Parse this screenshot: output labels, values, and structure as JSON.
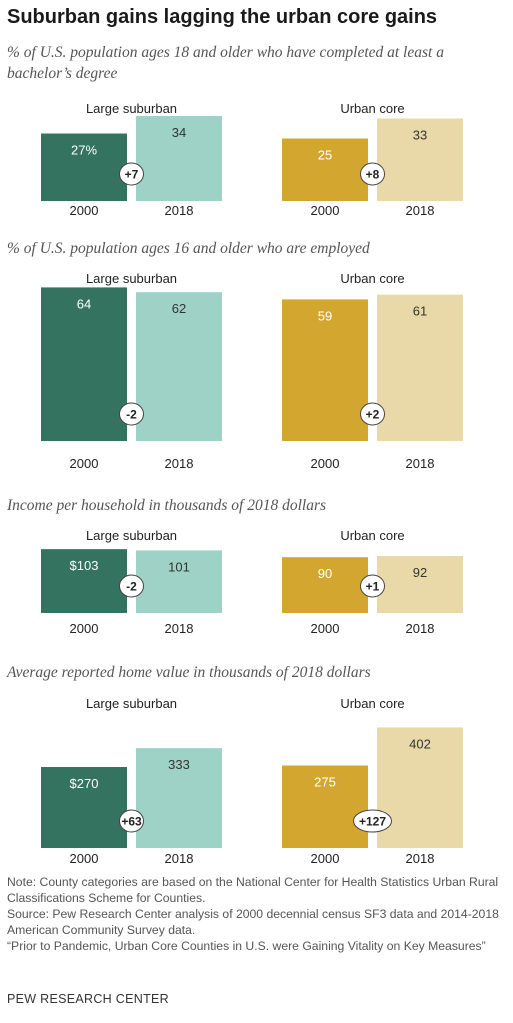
{
  "title": "Suburban gains lagging the urban core gains",
  "colors": {
    "suburban_2000": "#33735f",
    "suburban_2018": "#9ed2c6",
    "urban_2000": "#d3a72f",
    "urban_2018": "#ead9a8"
  },
  "chart_data": [
    {
      "type": "bar",
      "title": "% of U.S. population ages 18 and older who have completed at least a bachelor’s degree",
      "panels": [
        {
          "label": "Large suburban",
          "categories": [
            "2000",
            "2018"
          ],
          "values": [
            27,
            34
          ],
          "value_labels": [
            "27%",
            "34"
          ],
          "change": "+7"
        },
        {
          "label": "Urban core",
          "categories": [
            "2000",
            "2018"
          ],
          "values": [
            25,
            33
          ],
          "value_labels": [
            "25",
            "33"
          ],
          "change": "+8"
        }
      ]
    },
    {
      "type": "bar",
      "title": "% of U.S. population ages 16 and older who are employed",
      "panels": [
        {
          "label": "Large suburban",
          "categories": [
            "2000",
            "2018"
          ],
          "values": [
            64,
            62
          ],
          "value_labels": [
            "64",
            "62"
          ],
          "change": "-2"
        },
        {
          "label": "Urban core",
          "categories": [
            "2000",
            "2018"
          ],
          "values": [
            59,
            61
          ],
          "value_labels": [
            "59",
            "61"
          ],
          "change": "+2"
        }
      ]
    },
    {
      "type": "bar",
      "title": "Income per household in thousands of 2018 dollars",
      "panels": [
        {
          "label": "Large suburban",
          "categories": [
            "2000",
            "2018"
          ],
          "values": [
            103,
            101
          ],
          "value_labels": [
            "$103",
            "101"
          ],
          "change": "-2"
        },
        {
          "label": "Urban core",
          "categories": [
            "2000",
            "2018"
          ],
          "values": [
            90,
            92
          ],
          "value_labels": [
            "90",
            "92"
          ],
          "change": "+1"
        }
      ]
    },
    {
      "type": "bar",
      "title": "Average reported home value in thousands of 2018 dollars",
      "panels": [
        {
          "label": "Large suburban",
          "categories": [
            "2000",
            "2018"
          ],
          "values": [
            270,
            333
          ],
          "value_labels": [
            "$270",
            "333"
          ],
          "change": "+63"
        },
        {
          "label": "Urban core",
          "categories": [
            "2000",
            "2018"
          ],
          "values": [
            275,
            402
          ],
          "value_labels": [
            "275",
            "402"
          ],
          "change": "+127"
        }
      ]
    }
  ],
  "notes": [
    "Note: County categories are based on the National Center for Health Statistics Urban Rural Classifications Scheme for Counties.",
    "Source: Pew Research Center analysis of 2000 decennial census SF3 data and 2014-2018 American Community Survey data.",
    "“Prior to Pandemic, Urban Core Counties in U.S. were Gaining Vitality on Key Measures”"
  ],
  "source": "PEW RESEARCH CENTER"
}
